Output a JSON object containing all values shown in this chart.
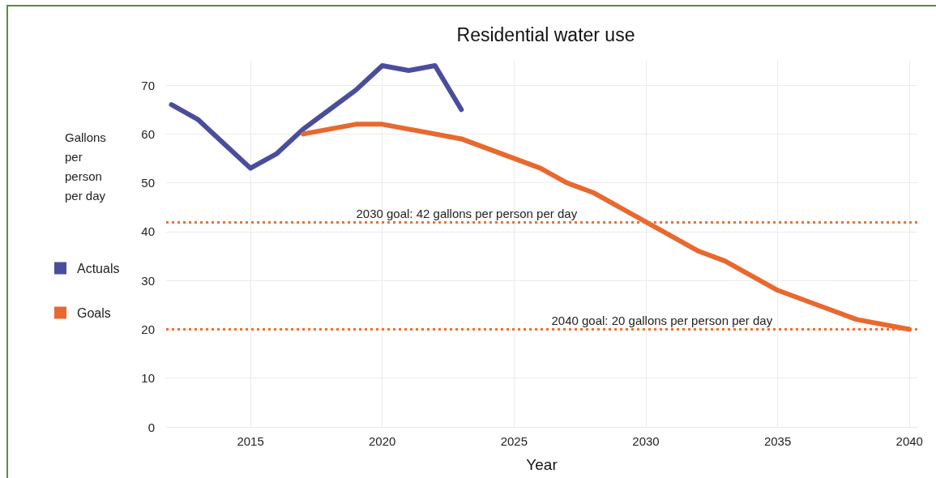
{
  "chart_data": {
    "type": "line",
    "title": "Residential water use",
    "xlabel": "Year",
    "ylabel": "Gallons per person per day",
    "series": [
      {
        "name": "Actuals",
        "color": "#4b4d9c",
        "x": [
          2012,
          2013,
          2014,
          2015,
          2016,
          2017,
          2018,
          2019,
          2020,
          2021,
          2022,
          2023
        ],
        "values": [
          66,
          63,
          58,
          53,
          56,
          61,
          65,
          69,
          74,
          73,
          74,
          65
        ]
      },
      {
        "name": "Goals",
        "color": "#e8692f",
        "x": [
          2017,
          2019,
          2020,
          2023,
          2026,
          2027,
          2028,
          2030,
          2032,
          2033,
          2035,
          2038,
          2040
        ],
        "values": [
          60,
          62,
          62,
          59,
          53,
          50,
          48,
          42,
          36,
          34,
          28,
          22,
          20
        ]
      }
    ],
    "xlim": [
      2011.8,
      2040.3
    ],
    "xticks": [
      2015,
      2020,
      2025,
      2030,
      2035,
      2040
    ],
    "ylim": [
      0,
      75
    ],
    "yticks": [
      0,
      10,
      20,
      30,
      40,
      50,
      60,
      70
    ],
    "ref_lines": [
      {
        "axis": "y",
        "value": 42,
        "label": "2030 goal: 42 gallons per person per day",
        "color": "#f07030",
        "line_style": "dotted"
      },
      {
        "axis": "y",
        "value": 20,
        "label": "2040 goal: 20 gallons per person per day",
        "color": "#f07030",
        "line_style": "dotted"
      }
    ],
    "grid": true,
    "legend": "left",
    "marker": "none",
    "line_style": "solid"
  }
}
